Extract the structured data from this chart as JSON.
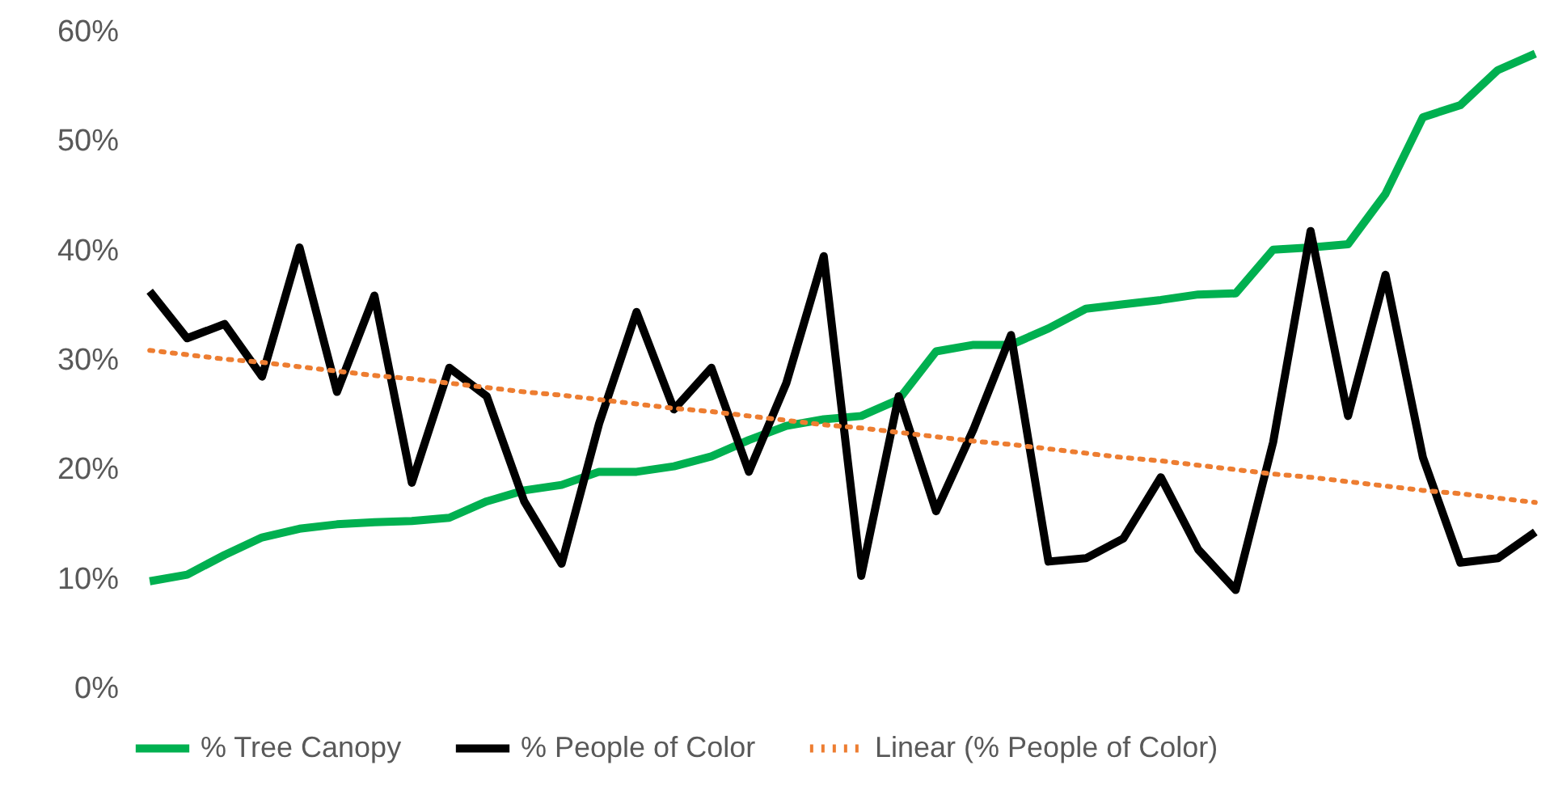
{
  "chart_data": {
    "type": "line",
    "categories": [
      null,
      null,
      null,
      null,
      null,
      null,
      null,
      null,
      null,
      null,
      null,
      null,
      null,
      null,
      null,
      null,
      null,
      null,
      null,
      null,
      null,
      null,
      null,
      null,
      null,
      null,
      null,
      null,
      null,
      null,
      null,
      null,
      null,
      null,
      null,
      null,
      null,
      null
    ],
    "ylim": [
      0,
      60
    ],
    "yticks": [
      {
        "value": 0,
        "label": "0%"
      },
      {
        "value": 10,
        "label": "10%"
      },
      {
        "value": 20,
        "label": "20%"
      },
      {
        "value": 30,
        "label": "30%"
      },
      {
        "value": 40,
        "label": "40%"
      },
      {
        "value": 50,
        "label": "50%"
      },
      {
        "value": 60,
        "label": "60%"
      }
    ],
    "tick_labels": "y",
    "grid": false,
    "legend": "bottom",
    "series": [
      {
        "name": "% Tree Canopy",
        "color": "#00b050",
        "line_style": "solid",
        "values": [
          9.7,
          10.3,
          12.1,
          13.7,
          14.5,
          14.9,
          15.1,
          15.2,
          15.5,
          17.0,
          18.0,
          18.5,
          19.7,
          19.7,
          20.2,
          21.1,
          22.6,
          23.9,
          24.5,
          24.8,
          26.3,
          30.7,
          31.3,
          31.3,
          32.8,
          34.6,
          35.0,
          35.4,
          35.9,
          36.0,
          40.0,
          40.2,
          40.5,
          45.1,
          52.1,
          53.2,
          56.4,
          57.9
        ]
      },
      {
        "name": "% People of Color",
        "color": "#000000",
        "line_style": "solid",
        "values": [
          36.2,
          31.9,
          33.2,
          28.4,
          40.2,
          27.0,
          35.8,
          18.7,
          29.2,
          26.6,
          17.0,
          11.3,
          24.1,
          34.3,
          25.4,
          29.2,
          19.7,
          27.8,
          39.4,
          10.2,
          26.6,
          16.1,
          23.6,
          32.2,
          11.5,
          11.8,
          13.6,
          19.2,
          12.6,
          8.9,
          22.4,
          41.7,
          24.8,
          37.7,
          21.0,
          11.4,
          11.8,
          14.2
        ]
      },
      {
        "name": "Linear (% People of Color)",
        "color": "#ed7d31",
        "line_style": "dotted",
        "values": [
          30.8,
          30.4,
          30.0,
          29.7,
          29.3,
          28.9,
          28.5,
          28.2,
          27.8,
          27.4,
          27.0,
          26.7,
          26.3,
          25.9,
          25.5,
          25.2,
          24.8,
          24.4,
          24.0,
          23.7,
          23.3,
          22.9,
          22.5,
          22.2,
          21.8,
          21.4,
          21.0,
          20.7,
          20.3,
          19.9,
          19.5,
          19.2,
          18.8,
          18.4,
          18.0,
          17.7,
          17.3,
          16.9
        ]
      }
    ]
  }
}
